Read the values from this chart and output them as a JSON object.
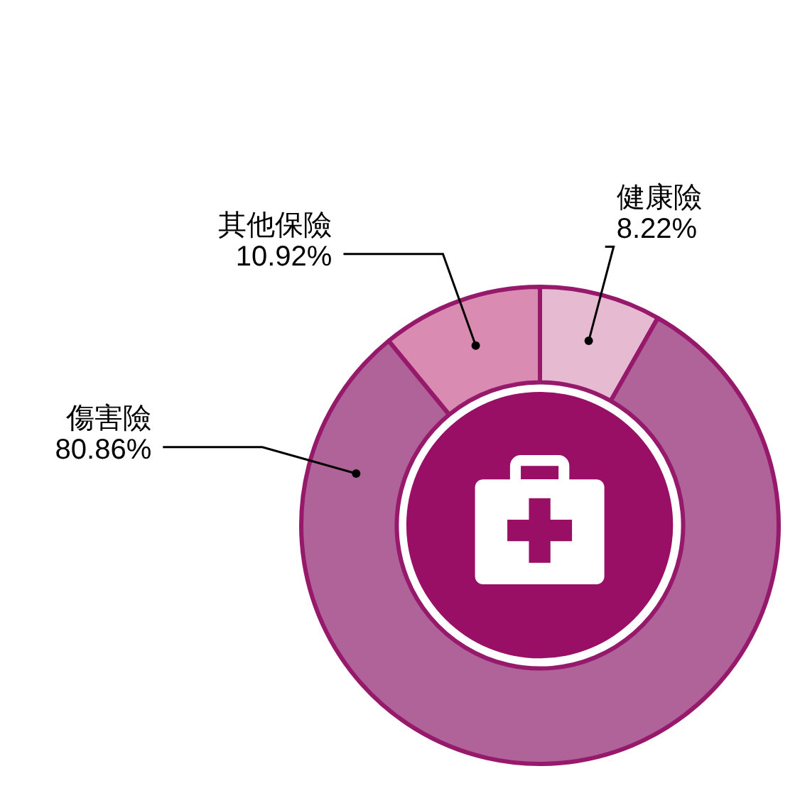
{
  "chart_data": {
    "type": "donut",
    "categories": [
      "健康險",
      "傷害險",
      "其他保險"
    ],
    "values": [
      8.22,
      80.86,
      10.92
    ],
    "value_labels": [
      "8.22%",
      "80.86%",
      "10.92%"
    ],
    "colors": [
      "#e6bad0",
      "#b06399",
      "#d98bb1"
    ],
    "legend": false
  }
}
